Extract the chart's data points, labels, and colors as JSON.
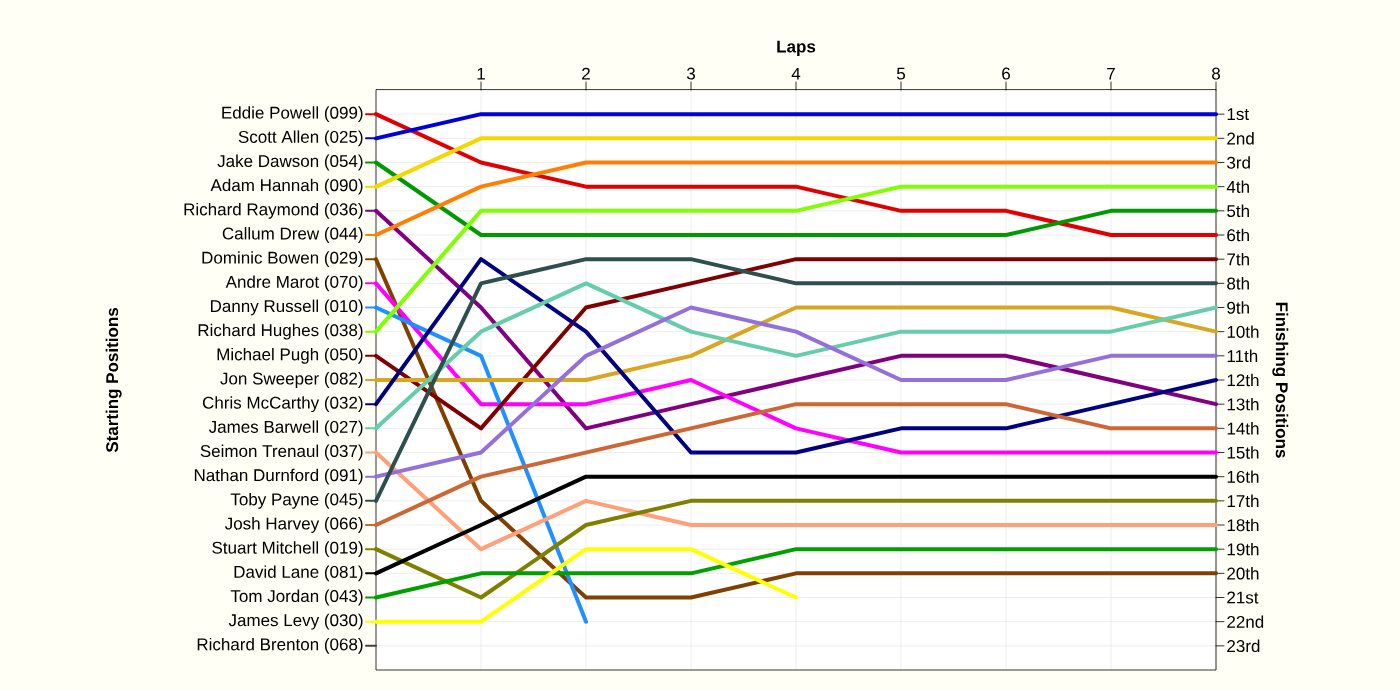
{
  "chart_data": {
    "type": "line",
    "xlabel": "Laps",
    "annotations": [
      "Starting Positions"
    ],
    "y2label": "Finishing Positions",
    "x": [
      0,
      1,
      2,
      3,
      4,
      5,
      6,
      7,
      8
    ],
    "xlim": [
      0,
      8
    ],
    "xticks": [
      1,
      2,
      3,
      4,
      5,
      6,
      7,
      8
    ],
    "grid": true,
    "legend": "left",
    "y2lim": [
      24,
      0
    ],
    "y2ticks": [
      {
        "value": 1,
        "label": "1st"
      },
      {
        "value": 2,
        "label": "2nd"
      },
      {
        "value": 3,
        "label": "3rd"
      },
      {
        "value": 4,
        "label": "4th"
      },
      {
        "value": 5,
        "label": "5th"
      },
      {
        "value": 6,
        "label": "6th"
      },
      {
        "value": 7,
        "label": "7th"
      },
      {
        "value": 8,
        "label": "8th"
      },
      {
        "value": 9,
        "label": "9th"
      },
      {
        "value": 10,
        "label": "10th"
      },
      {
        "value": 11,
        "label": "11th"
      },
      {
        "value": 12,
        "label": "12th"
      },
      {
        "value": 13,
        "label": "13th"
      },
      {
        "value": 14,
        "label": "14th"
      },
      {
        "value": 15,
        "label": "15th"
      },
      {
        "value": 16,
        "label": "16th"
      },
      {
        "value": 17,
        "label": "17th"
      },
      {
        "value": 18,
        "label": "18th"
      },
      {
        "value": 19,
        "label": "19th"
      },
      {
        "value": 20,
        "label": "20th"
      },
      {
        "value": 21,
        "label": "21st"
      },
      {
        "value": 22,
        "label": "22nd"
      },
      {
        "value": 23,
        "label": "23rd"
      }
    ],
    "series": [
      {
        "name": "Eddie Powell (099)",
        "axis": "y2",
        "color": "#e00000",
        "values": [
          1,
          3,
          4,
          4,
          4,
          5,
          5,
          6,
          6
        ]
      },
      {
        "name": "Scott Allen (025)",
        "axis": "y2",
        "color": "#0000dd",
        "values": [
          2,
          1,
          1,
          1,
          1,
          1,
          1,
          1,
          1
        ]
      },
      {
        "name": "Jake Dawson (054)",
        "axis": "y2",
        "color": "#009900",
        "values": [
          3,
          6,
          6,
          6,
          6,
          6,
          6,
          5,
          5
        ]
      },
      {
        "name": "Adam Hannah (090)",
        "axis": "y2",
        "color": "#f0d800",
        "values": [
          4,
          2,
          2,
          2,
          2,
          2,
          2,
          2,
          2
        ]
      },
      {
        "name": "Richard Raymond (036)",
        "axis": "y2",
        "color": "#800080",
        "values": [
          5,
          9,
          14,
          13,
          12,
          11,
          11,
          12,
          13
        ]
      },
      {
        "name": "Callum Drew (044)",
        "axis": "y2",
        "color": "#ff8000",
        "values": [
          6,
          4,
          3,
          3,
          3,
          3,
          3,
          3,
          3
        ]
      },
      {
        "name": "Dominic Bowen (029)",
        "axis": "y2",
        "color": "#804000",
        "values": [
          7,
          17,
          21,
          21,
          20,
          20,
          20,
          20,
          20
        ]
      },
      {
        "name": "Andre Marot (070)",
        "axis": "y2",
        "color": "#ff00ff",
        "values": [
          8,
          13,
          13,
          12,
          14,
          15,
          15,
          15,
          15
        ]
      },
      {
        "name": "Danny Russell (010)",
        "axis": "y2",
        "color": "#1e90ff",
        "values": [
          9,
          11,
          22,
          null,
          null,
          null,
          null,
          null,
          null
        ]
      },
      {
        "name": "Richard Hughes (038)",
        "axis": "y2",
        "color": "#80ff00",
        "values": [
          10,
          5,
          5,
          5,
          5,
          4,
          4,
          4,
          4
        ]
      },
      {
        "name": "Michael Pugh (050)",
        "axis": "y2",
        "color": "#800000",
        "values": [
          11,
          14,
          9,
          8,
          7,
          7,
          7,
          7,
          7
        ]
      },
      {
        "name": "Jon Sweeper (082)",
        "axis": "y2",
        "color": "#daa520",
        "values": [
          12,
          12,
          12,
          11,
          9,
          9,
          9,
          9,
          10
        ]
      },
      {
        "name": "Chris McCarthy (032)",
        "axis": "y2",
        "color": "#000080",
        "values": [
          13,
          7,
          10,
          15,
          15,
          14,
          14,
          13,
          12
        ]
      },
      {
        "name": "James Barwell (027)",
        "axis": "y2",
        "color": "#66cdaa",
        "values": [
          14,
          10,
          8,
          10,
          11,
          10,
          10,
          10,
          9
        ]
      },
      {
        "name": "Seimon Trenaul (037)",
        "axis": "y2",
        "color": "#ffa07a",
        "values": [
          15,
          19,
          17,
          18,
          18,
          18,
          18,
          18,
          18
        ]
      },
      {
        "name": "Nathan Durnford (091)",
        "axis": "y2",
        "color": "#9370db",
        "values": [
          16,
          15,
          11,
          9,
          10,
          12,
          12,
          11,
          11
        ]
      },
      {
        "name": "Toby Payne (045)",
        "axis": "y2",
        "color": "#2f4f4f",
        "values": [
          17,
          8,
          7,
          7,
          8,
          8,
          8,
          8,
          8
        ]
      },
      {
        "name": "Josh Harvey (066)",
        "axis": "y2",
        "color": "#cd6633",
        "values": [
          18,
          16,
          15,
          14,
          13,
          13,
          13,
          14,
          14
        ]
      },
      {
        "name": "Stuart Mitchell (019)",
        "axis": "y2",
        "color": "#808000",
        "values": [
          19,
          21,
          18,
          17,
          17,
          17,
          17,
          17,
          17
        ]
      },
      {
        "name": "David Lane (081)",
        "axis": "y2",
        "color": "#000000",
        "values": [
          20,
          18,
          16,
          16,
          16,
          16,
          16,
          16,
          16
        ]
      },
      {
        "name": "Tom Jordan (043)",
        "axis": "y2",
        "color": "#00a000",
        "values": [
          21,
          20,
          20,
          20,
          19,
          19,
          19,
          19,
          19
        ]
      },
      {
        "name": "James Levy (030)",
        "axis": "y2",
        "color": "#ffff00",
        "values": [
          22,
          22,
          19,
          19,
          21,
          null,
          null,
          null,
          null
        ]
      },
      {
        "name": "Richard Brenton (068)",
        "axis": "y2",
        "color": "#404040",
        "values": [
          null,
          null,
          null,
          null,
          null,
          null,
          null,
          null,
          null
        ]
      }
    ]
  }
}
